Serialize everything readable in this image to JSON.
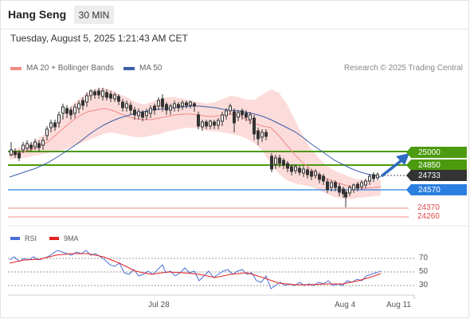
{
  "header": {
    "symbol": "Hang Seng",
    "timeframe": "30 MIN"
  },
  "timestamp": "Tuesday, August 5, 2025 1:21:43 AM CET",
  "legend": {
    "ma20": {
      "label": "MA 20 + Bollinger Bands",
      "color": "#f28b82"
    },
    "ma50": {
      "label": "MA 50",
      "color": "#3b5ea8"
    }
  },
  "copyright": "Research © 2025 Trading Central",
  "levels": [
    {
      "label": "25000",
      "kind": "tag",
      "color": "#4c9a0e"
    },
    {
      "label": "24850",
      "kind": "tag",
      "color": "#4c9a0e"
    },
    {
      "label": "24733",
      "kind": "tag",
      "color": "#333333"
    },
    {
      "label": "24570",
      "kind": "tag",
      "color": "#2a7fe0"
    },
    {
      "label": "24370",
      "kind": "text",
      "color": "#e04848"
    },
    {
      "label": "24260",
      "kind": "text",
      "color": "#e04848"
    }
  ],
  "rsi": {
    "rsi_label": "RSI",
    "rsi_color": "#4a6fd8",
    "ma_label": "9MA",
    "ma_color": "#e52222",
    "levels": [
      "70",
      "50",
      "30"
    ]
  },
  "x_axis": [
    "Jul 28",
    "Aug 4",
    "Aug 11"
  ]
}
